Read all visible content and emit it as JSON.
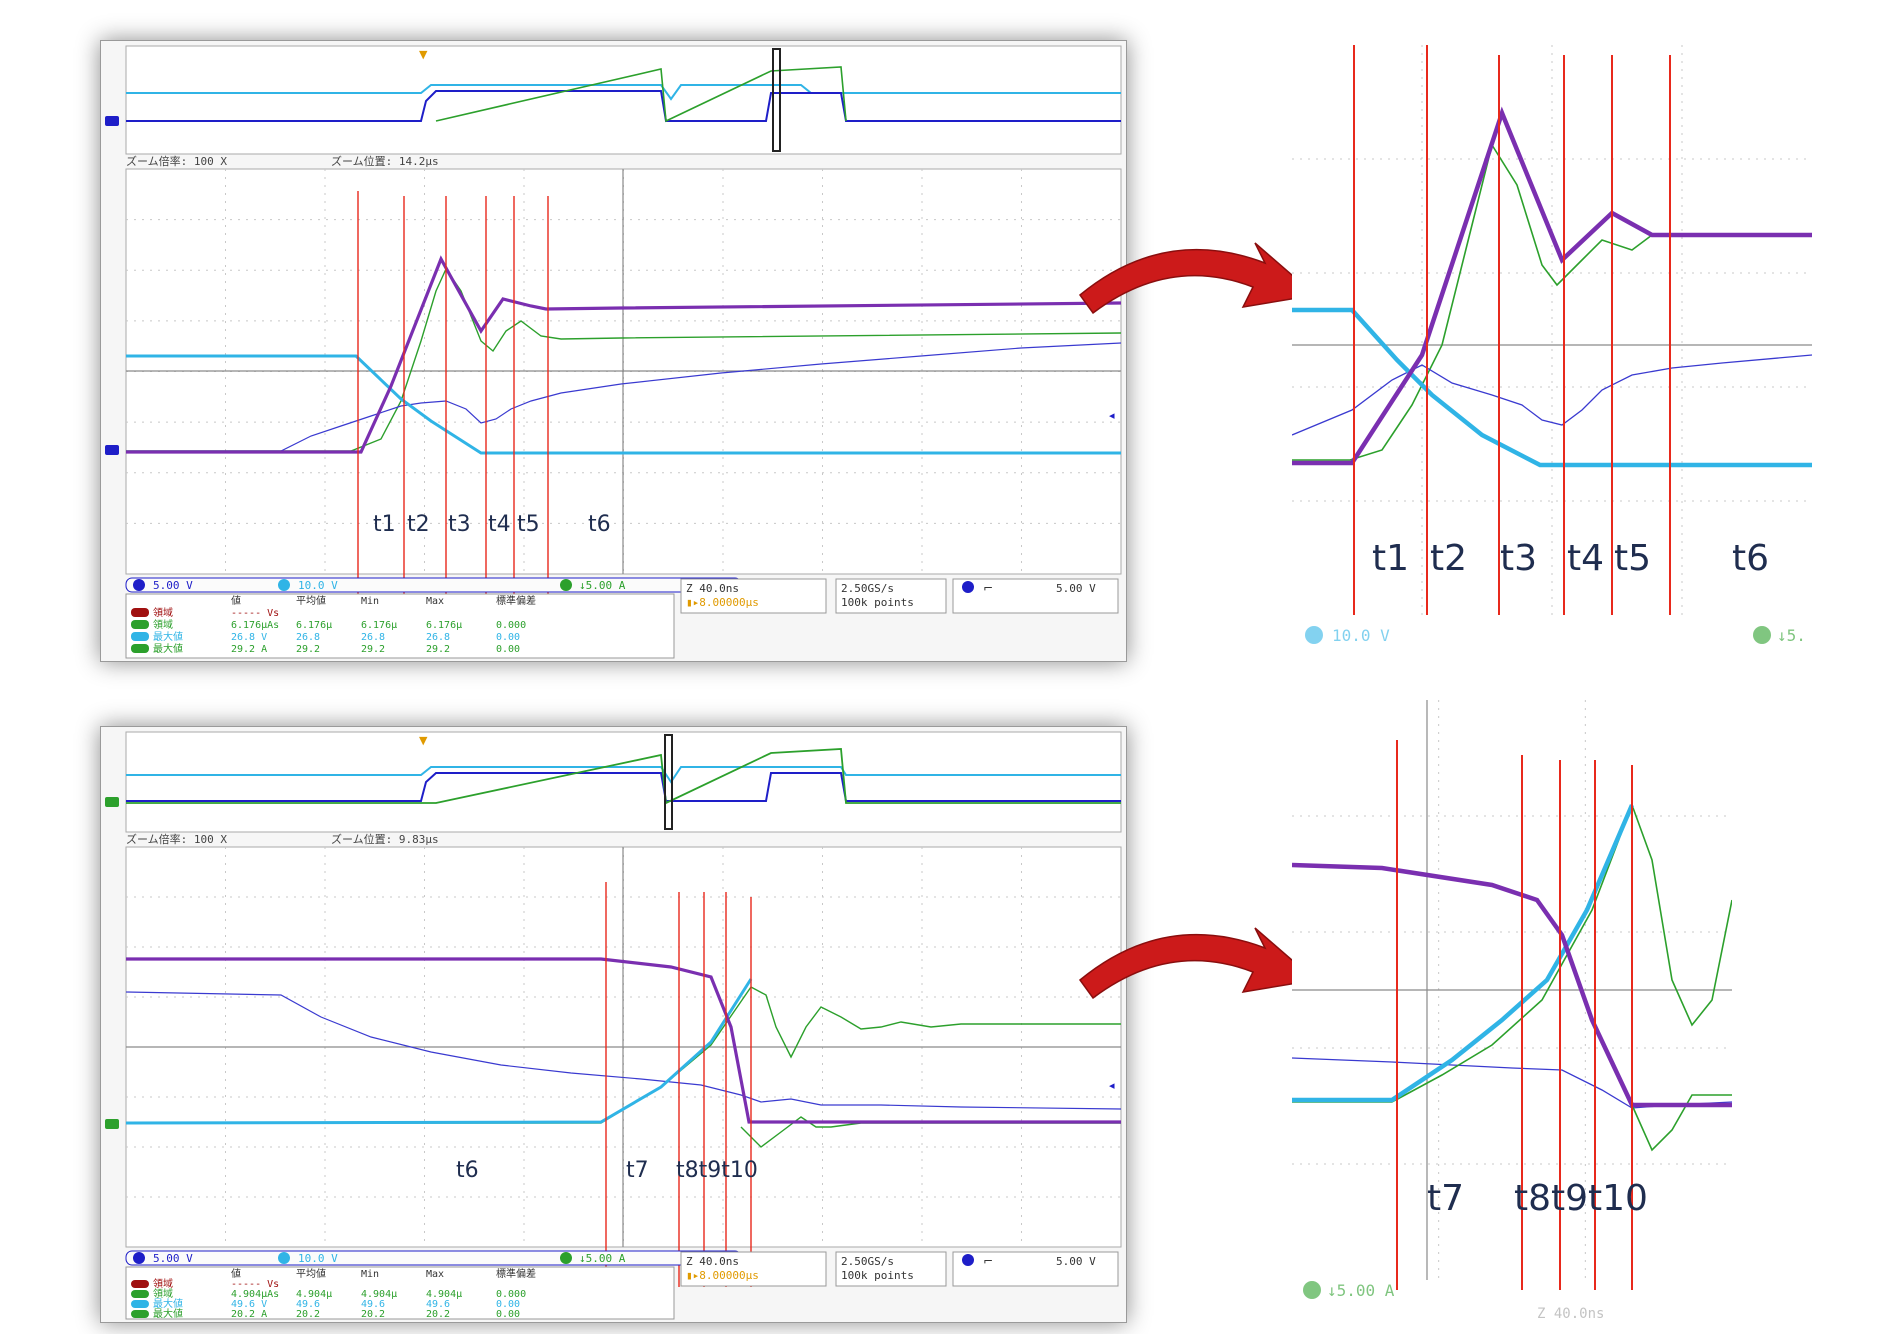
{
  "colors": {
    "ch1": "#1e1ec8",
    "ch2": "#30b4e6",
    "ch4": "#2ca02c",
    "math": "#7a2fb0",
    "marker": "#e8291c",
    "arrow": "#cc1a1a",
    "label": "#1f2d4f"
  },
  "top_scope": {
    "zoom_factor": "ズーム倍率: 100 X",
    "zoom_position": "ズーム位置: 14.2μs",
    "t_labels": [
      "t1",
      "t2",
      "t3",
      "t4",
      "t5",
      "t6"
    ],
    "ch1_scale": "5.00 V",
    "ch2_scale": "10.0 V",
    "ch4_scale": "↓5.00 A",
    "meas_headers": [
      "値",
      "平均値",
      "Min",
      "Max",
      "標準偏差"
    ],
    "meas_rows": [
      {
        "badge": "M",
        "label": "領域",
        "values": [
          "----- Vs",
          "",
          "",
          "",
          ""
        ]
      },
      {
        "badge": "4",
        "label": "領域",
        "values": [
          "6.176μAs",
          "6.176μ",
          "6.176μ",
          "6.176μ",
          "0.000"
        ]
      },
      {
        "badge": "2",
        "label": "最大値",
        "values": [
          "26.8 V",
          "26.8",
          "26.8",
          "26.8",
          "0.00"
        ]
      },
      {
        "badge": "4",
        "label": "最大値",
        "values": [
          "29.2 A",
          "29.2",
          "29.2",
          "29.2",
          "0.00"
        ]
      }
    ],
    "timebase": "Z 40.0ns",
    "delay": "▮▸8.00000μs",
    "sample_rate": "2.50GS/s",
    "record_length": "100k points",
    "trigger_level": "5.00 V"
  },
  "bottom_scope": {
    "zoom_factor": "ズーム倍率: 100 X",
    "zoom_position": "ズーム位置: 9.83μs",
    "t_labels": [
      "t6",
      "t7",
      "t8t9t10"
    ],
    "ch1_scale": "5.00 V",
    "ch2_scale": "10.0 V",
    "ch4_scale": "↓5.00 A",
    "meas_headers": [
      "値",
      "平均値",
      "Min",
      "Max",
      "標準偏差"
    ],
    "meas_rows": [
      {
        "badge": "M",
        "label": "領域",
        "values": [
          "----- Vs",
          "",
          "",
          "",
          ""
        ]
      },
      {
        "badge": "4",
        "label": "領域",
        "values": [
          "4.904μAs",
          "4.904μ",
          "4.904μ",
          "4.904μ",
          "0.000"
        ]
      },
      {
        "badge": "2",
        "label": "最大値",
        "values": [
          "49.6 V",
          "49.6",
          "49.6",
          "49.6",
          "0.00"
        ]
      },
      {
        "badge": "4",
        "label": "最大値",
        "values": [
          "20.2 A",
          "20.2",
          "20.2",
          "20.2",
          "0.00"
        ]
      }
    ],
    "timebase": "Z 40.0ns",
    "delay": "▮▸8.00000μs",
    "sample_rate": "2.50GS/s",
    "record_length": "100k points",
    "trigger_level": "5.00 V"
  },
  "zoom_top": {
    "t_labels": [
      "t1",
      "t2",
      "t3",
      "t4",
      "t5",
      "t6"
    ],
    "scale_label": "10.0 V",
    "scale_label_right": "↓5."
  },
  "zoom_bottom": {
    "t_labels": [
      "t7",
      "t8t9t10"
    ],
    "scale_label": "↓5.00 A",
    "timebase_partial": "Z 40.0ns"
  }
}
